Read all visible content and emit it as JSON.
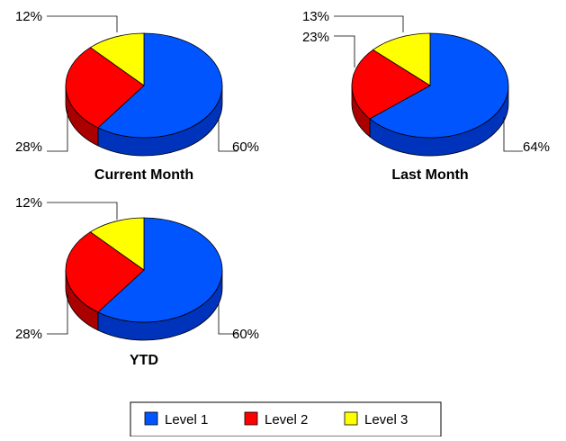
{
  "chart_data": [
    {
      "type": "pie",
      "title": "Current Month",
      "categories": [
        "Level 1",
        "Level 2",
        "Level 3"
      ],
      "values": [
        60,
        28,
        12
      ],
      "labels": [
        "60%",
        "28%",
        "12%"
      ]
    },
    {
      "type": "pie",
      "title": "Last Month",
      "categories": [
        "Level 1",
        "Level 2",
        "Level 3"
      ],
      "values": [
        64,
        23,
        13
      ],
      "labels": [
        "64%",
        "23%",
        "13%"
      ]
    },
    {
      "type": "pie",
      "title": "YTD",
      "categories": [
        "Level 1",
        "Level 2",
        "Level 3"
      ],
      "values": [
        60,
        28,
        12
      ],
      "labels": [
        "60%",
        "28%",
        "12%"
      ]
    }
  ],
  "legend": {
    "items": [
      {
        "label": "Level 1",
        "color": "#0055ff"
      },
      {
        "label": "Level 2",
        "color": "#ff0000"
      },
      {
        "label": "Level 3",
        "color": "#ffff00"
      }
    ]
  },
  "colors": {
    "side": [
      "#0033bb",
      "#aa0000",
      "#b5b500"
    ]
  }
}
